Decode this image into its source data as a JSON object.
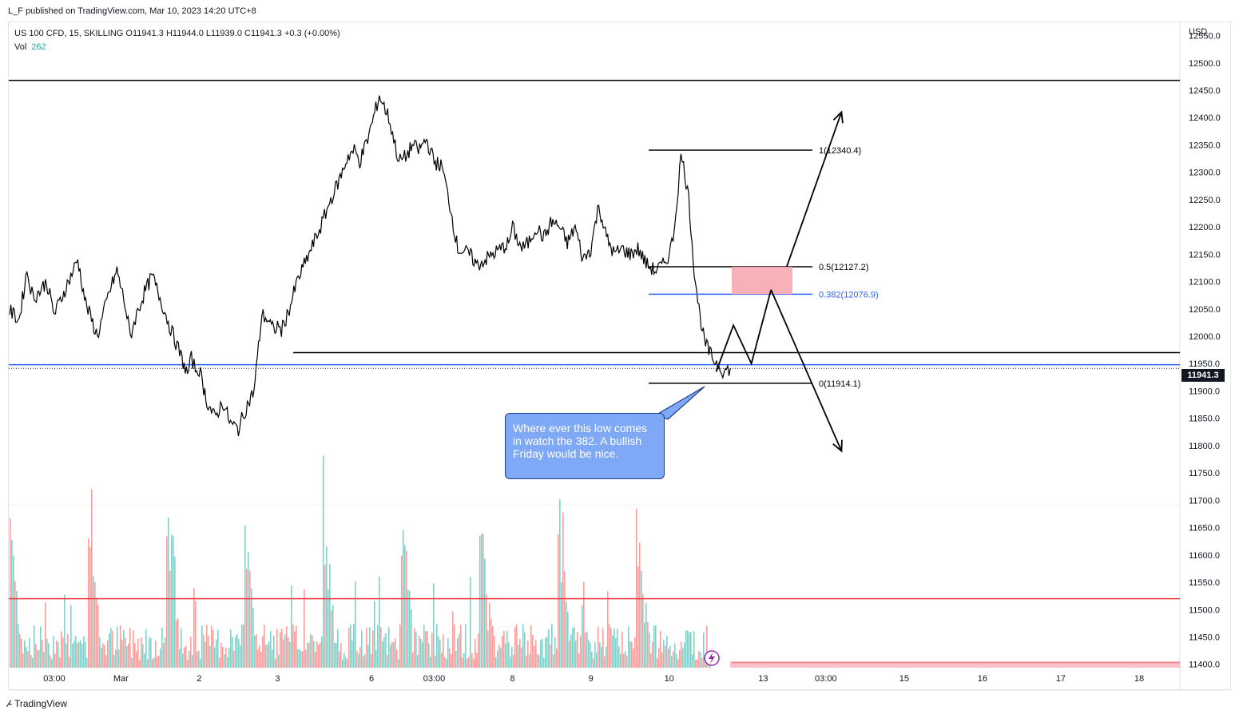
{
  "header": {
    "publisher": "L_F published on TradingView.com, Mar 10, 2023 14:20 UTC+8"
  },
  "legend": {
    "symbol_line": "US 100 CFD, 15, SKILLING  O11941.3  H11944.0  L11939.0  C11941.3  +0.3 (+0.00%)",
    "vol_label": "Vol",
    "vol_value": "262"
  },
  "price_axis": {
    "currency": "USD",
    "last_price": "11941.3"
  },
  "footer": {
    "brand": "TradingView"
  },
  "annotation": {
    "text": "Where ever this low comes in watch the 382. A bullish Friday would be nice."
  },
  "colors": {
    "candle": "#000000",
    "vol_up": "#26a69a",
    "vol_down": "#ef5350",
    "support_blue": "#2962ff",
    "red_line": "#f23645",
    "zone_fill": "#f7a8b0",
    "callout_fill": "#7fa8f7"
  },
  "chart_data": {
    "type": "line",
    "ylim": [
      11385,
      12580
    ],
    "yticks": [
      12550,
      12500,
      12450,
      12400,
      12350,
      12300,
      12250,
      12200,
      12150,
      12100,
      12050,
      12000,
      11950,
      11900,
      11850,
      11800,
      11750,
      11700,
      11650,
      11600,
      11550,
      11500,
      11450,
      11400
    ],
    "ytick_labels": [
      "12550.0",
      "12500.0",
      "12450.0",
      "12400.0",
      "12350.0",
      "12300.0",
      "12250.0",
      "12200.0",
      "12150.0",
      "12100.0",
      "12050.0",
      "12000.0",
      "11950.0",
      "11900.0",
      "11850.0",
      "11800.0",
      "11750.0",
      "11700.0",
      "11650.0",
      "11600.0",
      "11550.0",
      "11500.0",
      "11450.0",
      "11400.0"
    ],
    "xtick_labels": [
      "03:00",
      "Mar",
      "2",
      "3",
      "6",
      "03:00",
      "8",
      "9",
      "10",
      "13",
      "03:00",
      "15",
      "16",
      "17",
      "18"
    ],
    "x_domain": [
      0,
      14.3
    ],
    "xtick_positions": [
      0.15,
      1.0,
      2.0,
      3.0,
      4.2,
      5.0,
      6.0,
      7.0,
      8.0,
      9.2,
      10.0,
      11.0,
      12.0,
      13.0,
      14.0
    ],
    "price_series": {
      "name": "US 100 CFD",
      "x": [
        -0.55,
        -0.45,
        -0.3,
        -0.2,
        -0.12,
        -0.05,
        0.05,
        0.15,
        0.3,
        0.45,
        0.55,
        0.7,
        0.85,
        0.95,
        1.05,
        1.12,
        1.2,
        1.3,
        1.4,
        1.5,
        1.62,
        1.75,
        1.85,
        1.9,
        1.95,
        2.0,
        2.1,
        2.2,
        2.3,
        2.4,
        2.5,
        2.6,
        2.7,
        2.8,
        2.88,
        2.95,
        3.0,
        3.05,
        3.15,
        3.25,
        3.4,
        3.55,
        3.68,
        3.8,
        3.9,
        3.98,
        4.05,
        4.15,
        4.3,
        4.42,
        4.55,
        4.65,
        4.72,
        4.8,
        4.9,
        5.0,
        5.1,
        5.2,
        5.3,
        5.45,
        5.55,
        5.65,
        5.75,
        5.85,
        5.95,
        6.0,
        6.05,
        6.12,
        6.2,
        6.3,
        6.4,
        6.5,
        6.6,
        6.7,
        6.8,
        6.9,
        7.0,
        7.1,
        7.2,
        7.3,
        7.4,
        7.5,
        7.6,
        7.72,
        7.82,
        7.92,
        8.0,
        8.05,
        8.1,
        8.15,
        8.2,
        8.25,
        8.32,
        8.38,
        8.45,
        8.55,
        8.62,
        8.7,
        8.78
      ],
      "y": [
        11990,
        12050,
        12030,
        12120,
        12070,
        12080,
        12100,
        12040,
        12090,
        12140,
        12060,
        12000,
        12080,
        12120,
        12060,
        12000,
        12040,
        12080,
        12110,
        12070,
        12020,
        11970,
        11930,
        11960,
        11940,
        11940,
        11880,
        11850,
        11880,
        11840,
        11830,
        11870,
        11900,
        12040,
        12030,
        12010,
        12020,
        12010,
        12050,
        12100,
        12150,
        12200,
        12250,
        12290,
        12330,
        12340,
        12320,
        12360,
        12440,
        12400,
        12320,
        12330,
        12350,
        12340,
        12360,
        12320,
        12310,
        12240,
        12160,
        12150,
        12130,
        12140,
        12150,
        12160,
        12170,
        12200,
        12180,
        12160,
        12170,
        12200,
        12180,
        12210,
        12200,
        12170,
        12200,
        12140,
        12160,
        12240,
        12180,
        12150,
        12160,
        12150,
        12160,
        12130,
        12120,
        12130,
        12150,
        12180,
        12250,
        12330,
        12300,
        12250,
        12120,
        12050,
        11990,
        11960,
        11950,
        11935,
        11941
      ]
    },
    "volume_series": {
      "name": "Vol",
      "note_last": "262"
    },
    "levels": [
      {
        "label": "",
        "value": 12468,
        "color": "#000000",
        "x_from": -0.6,
        "x_to": 14.6
      },
      {
        "label": "",
        "value": 11970,
        "color": "#000000",
        "x_from": 3.2,
        "x_to": 14.6
      },
      {
        "label": "",
        "value": 11948,
        "color": "#2962ff",
        "x_from": -0.6,
        "x_to": 14.6
      },
      {
        "label": "",
        "value": 11520,
        "color": "#f23645",
        "x_from": -0.6,
        "x_to": 14.6
      },
      {
        "label": "",
        "value": 11403,
        "color": "#f23645",
        "x_from": 8.8,
        "x_to": 14.6
      }
    ],
    "fibonacci": [
      {
        "label": "1(12340.4)",
        "value": 12340.4,
        "color": "#000000"
      },
      {
        "label": "0.5(12127.2)",
        "value": 12127.2,
        "color": "#000000"
      },
      {
        "label": "0.382(12076.9)",
        "value": 12076.9,
        "color": "#2962ff"
      },
      {
        "label": "0(11914.1)",
        "value": 11914.1,
        "color": "#000000"
      }
    ],
    "projection_path": {
      "x": [
        8.6,
        8.82,
        9.05,
        9.3
      ],
      "y": [
        11935,
        12020,
        11950,
        12085
      ]
    },
    "projection_up": {
      "x": [
        9.5,
        10.2
      ],
      "y": [
        12127,
        12410
      ]
    },
    "projection_down": {
      "x": [
        9.3,
        10.2
      ],
      "y": [
        12085,
        11790
      ]
    }
  }
}
